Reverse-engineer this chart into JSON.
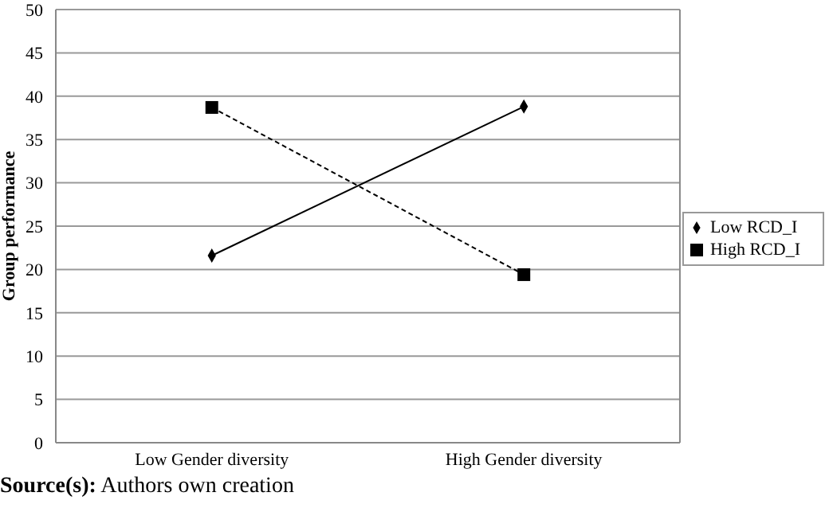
{
  "chart_data": {
    "type": "line",
    "categories": [
      "Low Gender diversity",
      "High Gender diversity"
    ],
    "ylabel": "Group performance",
    "ylim": [
      0,
      50
    ],
    "yticks": [
      0,
      5,
      10,
      15,
      20,
      25,
      30,
      35,
      40,
      45,
      50
    ],
    "series": [
      {
        "name": "Low RCD_I",
        "color": "#000000",
        "values": [
          21.6,
          38.8
        ],
        "marker": "diamond",
        "line_style": "solid"
      },
      {
        "name": "High RCD_I",
        "color": "#000000",
        "values": [
          38.7,
          19.4
        ],
        "marker": "square",
        "line_style": "dashed"
      }
    ],
    "grid": "y",
    "legend": "right",
    "annotations": [
      "Source(s): Authors own creation"
    ]
  }
}
